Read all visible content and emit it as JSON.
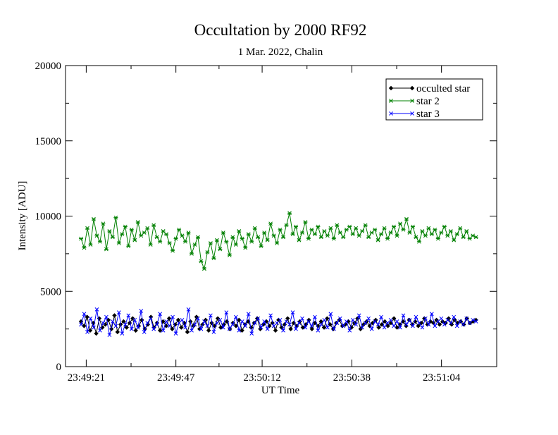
{
  "chart_data": {
    "type": "line",
    "title": "Occultation by 2000 RF92",
    "subtitle": "1 Mar. 2022, Chalin",
    "xlabel": "UT Time",
    "ylabel": "Intensity [ADU]",
    "ylim": [
      0,
      20000
    ],
    "yticks": [
      0,
      5000,
      10000,
      15000,
      20000
    ],
    "xlim_seconds": [
      0,
      125
    ],
    "xticks": [
      {
        "label": "23:49:21",
        "value": 6
      },
      {
        "label": "23:49:47",
        "value": 32
      },
      {
        "label": "23:50:12",
        "value": 57
      },
      {
        "label": "23:50:38",
        "value": 83
      },
      {
        "label": "23:51:04",
        "value": 109
      }
    ],
    "x_start_time": "23:49:15",
    "grid": false,
    "legend_position": "top-right",
    "series": [
      {
        "name": "occulted star",
        "color": "#000000",
        "marker": "diamond",
        "values": [
          3000,
          2700,
          3300,
          2400,
          2900,
          2200,
          3200,
          2600,
          2800,
          3100,
          2500,
          3400,
          2300,
          2800,
          3000,
          2600,
          2900,
          3200,
          2400,
          2700,
          3100,
          2500,
          2800,
          3300,
          2600,
          2900,
          2400,
          3000,
          2700,
          3200,
          2500,
          2800,
          3100,
          2600,
          2900,
          2300,
          3000,
          2700,
          3300,
          2500,
          2800,
          3100,
          2400,
          2900,
          2700,
          3200,
          2600,
          2800,
          3000,
          2500,
          2900,
          2700,
          3100,
          2400,
          2800,
          3000,
          2600,
          2900,
          3200,
          2500,
          2800,
          3000,
          2700,
          2900,
          2400,
          3100,
          2600,
          2800,
          3200,
          2500,
          2900,
          2700,
          3000,
          2600,
          2800,
          3100,
          2500,
          2900,
          2700,
          3000,
          2600,
          3200,
          2800,
          2500,
          2900,
          3100,
          2700,
          2800,
          3000,
          2600,
          2900,
          3200,
          2500,
          2800,
          3000,
          2700,
          2900,
          3100,
          2600,
          2800,
          3000,
          2700,
          2900,
          3200,
          2600,
          2800,
          3000,
          2700,
          3100,
          2800,
          3000,
          2700,
          2900,
          3200,
          2800,
          3000,
          2900,
          3100,
          2800,
          3000,
          2900,
          3200,
          2800,
          3100,
          2900,
          3000,
          2800,
          3200,
          2900,
          3000,
          3100
        ]
      },
      {
        "name": "star 2",
        "color": "#008000",
        "marker": "star",
        "values": [
          8500,
          7900,
          9200,
          8100,
          9800,
          8700,
          8300,
          9500,
          7800,
          9000,
          8600,
          9900,
          8200,
          8800,
          9300,
          8000,
          9100,
          8400,
          9600,
          8700,
          8900,
          9200,
          8100,
          9400,
          8600,
          8300,
          9000,
          8800,
          8200,
          7700,
          8500,
          9100,
          8700,
          8300,
          8900,
          7500,
          8100,
          8600,
          7000,
          6500,
          7600,
          8200,
          7200,
          8400,
          7800,
          8900,
          8300,
          7400,
          8600,
          8100,
          9000,
          8500,
          7900,
          8800,
          8300,
          9200,
          8600,
          8000,
          8900,
          8400,
          9500,
          8700,
          8200,
          9100,
          8600,
          9400,
          10200,
          8800,
          9300,
          8400,
          8900,
          9600,
          8500,
          9100,
          8800,
          9300,
          8600,
          9000,
          8700,
          9200,
          8500,
          9400,
          8900,
          8600,
          9100,
          9300,
          8800,
          9200,
          8700,
          9000,
          9400,
          8600,
          8900,
          9100,
          8400,
          8800,
          9200,
          8500,
          8900,
          9300,
          8700,
          9500,
          9100,
          9800,
          8900,
          9300,
          8600,
          8300,
          9000,
          8700,
          9200,
          8800,
          9100,
          8500,
          8900,
          9300,
          8700,
          9000,
          8400,
          8800,
          9200,
          8600,
          9000,
          8500,
          8700,
          8600
        ]
      },
      {
        "name": "star 3",
        "color": "#0000ff",
        "marker": "x",
        "values": [
          2800,
          3500,
          2300,
          3200,
          2600,
          3800,
          2400,
          2900,
          3300,
          2100,
          3000,
          2700,
          3600,
          2200,
          2800,
          3400,
          2500,
          3100,
          2600,
          3700,
          2300,
          2900,
          3200,
          2500,
          2800,
          3500,
          2400,
          3000,
          2700,
          3300,
          2200,
          2900,
          3100,
          2600,
          3800,
          2400,
          2800,
          3200,
          2500,
          3000,
          2700,
          3400,
          2300,
          2900,
          3100,
          2600,
          3600,
          2500,
          2800,
          3300,
          2400,
          3000,
          2700,
          3500,
          2200,
          2900,
          3200,
          2600,
          3000,
          2500,
          3400,
          2700,
          2900,
          3100,
          2400,
          3000,
          2800,
          3600,
          2500,
          2900,
          3200,
          2600,
          3000,
          2700,
          3300,
          2400,
          2800,
          3100,
          2600,
          3500,
          2500,
          2900,
          3200,
          2700,
          3000,
          2400,
          3100,
          2800,
          3400,
          2600,
          2900,
          3200,
          2500,
          3000,
          2800,
          3300,
          2600,
          2900,
          3100,
          2700,
          3000,
          2600,
          3400,
          2800,
          3100,
          2700,
          3300,
          2900,
          2600,
          3200,
          2800,
          3500,
          2700,
          3000,
          3200,
          2800,
          3100,
          2900,
          3300,
          2700,
          3000,
          2800,
          3200,
          2900,
          3100,
          3000
        ]
      }
    ]
  }
}
